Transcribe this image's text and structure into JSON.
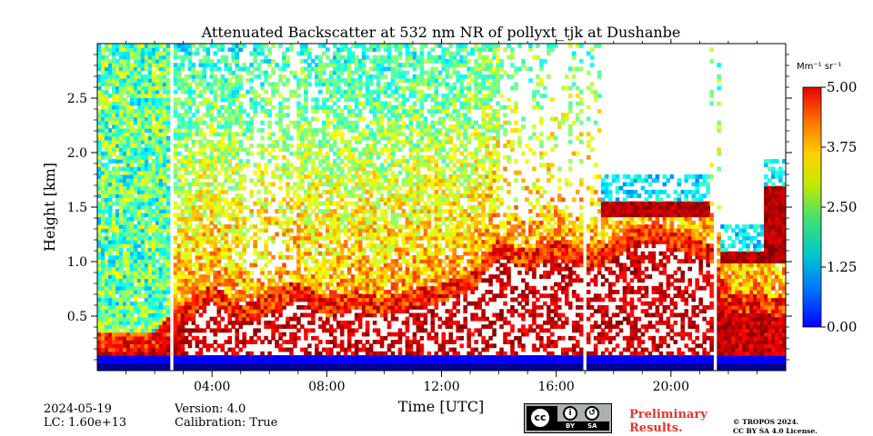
{
  "chart_data": {
    "type": "heatmap",
    "title": "Attenuated Backscatter at 532 nm NR of pollyxt_tjk at Dushanbe",
    "xlabel": "Time [UTC]",
    "ylabel": "Height [km]",
    "x_range_hours": [
      0,
      24
    ],
    "y_range_km": [
      0,
      3.0
    ],
    "x_ticks": [
      4,
      8,
      12,
      16,
      20
    ],
    "x_tick_labels": [
      "04:00",
      "08:00",
      "12:00",
      "16:00",
      "20:00"
    ],
    "y_ticks": [
      0.5,
      1.0,
      1.5,
      2.0,
      2.5
    ],
    "y_tick_labels": [
      "0.5",
      "1.0",
      "1.5",
      "2.0",
      "2.5"
    ],
    "colorbar": {
      "unit_label": "Mm⁻¹ sr⁻¹",
      "range": [
        0,
        5
      ],
      "ticks": [
        0,
        1.25,
        2.5,
        3.75,
        5.0
      ],
      "tick_labels": [
        "0.00",
        "1.25",
        "2.50",
        "3.75",
        "5.00"
      ],
      "colormap": "jet"
    },
    "data_gaps_hours": [
      [
        2.55,
        2.7
      ],
      [
        16.95,
        17.05
      ],
      [
        21.45,
        21.6
      ]
    ],
    "aerosol_layer_top_km": [
      [
        0.0,
        0.3
      ],
      [
        1.0,
        0.3
      ],
      [
        2.0,
        0.32
      ],
      [
        3.0,
        0.55
      ],
      [
        4.0,
        0.75
      ],
      [
        5.0,
        0.55
      ],
      [
        6.0,
        0.65
      ],
      [
        7.0,
        0.78
      ],
      [
        8.0,
        0.62
      ],
      [
        9.0,
        0.68
      ],
      [
        10.0,
        0.62
      ],
      [
        11.0,
        0.7
      ],
      [
        12.0,
        0.75
      ],
      [
        13.0,
        0.85
      ],
      [
        14.0,
        1.15
      ],
      [
        15.0,
        1.05
      ],
      [
        16.0,
        1.15
      ],
      [
        16.5,
        1.1
      ],
      [
        17.5,
        1.05
      ],
      [
        18.5,
        1.25
      ],
      [
        19.5,
        1.3
      ],
      [
        20.5,
        1.2
      ],
      [
        21.4,
        1.1
      ],
      [
        22.0,
        0.65
      ],
      [
        23.0,
        0.65
      ],
      [
        24.0,
        0.62
      ]
    ],
    "cloud_layers": [
      {
        "start": 17.5,
        "end": 21.4,
        "base_km": 1.4,
        "top_km": 1.55
      },
      {
        "start": 21.7,
        "end": 23.3,
        "base_km": 1.0,
        "top_km": 1.1
      },
      {
        "start": 23.3,
        "end": 24.0,
        "base_km": 1.0,
        "top_km": 1.7
      }
    ]
  },
  "footer": {
    "date": "2024-05-19",
    "lc": "LC: 1.60e+13",
    "version": "Version: 4.0",
    "calibration": "Calibration: True",
    "preliminary_line1": "Preliminary",
    "preliminary_line2": "Results.",
    "copyright_line1": "© TROPOS 2024.",
    "copyright_line2": "CC BY SA 4.0 License.",
    "license_cc": "cc",
    "license_by": "BY",
    "license_sa": "SA"
  }
}
